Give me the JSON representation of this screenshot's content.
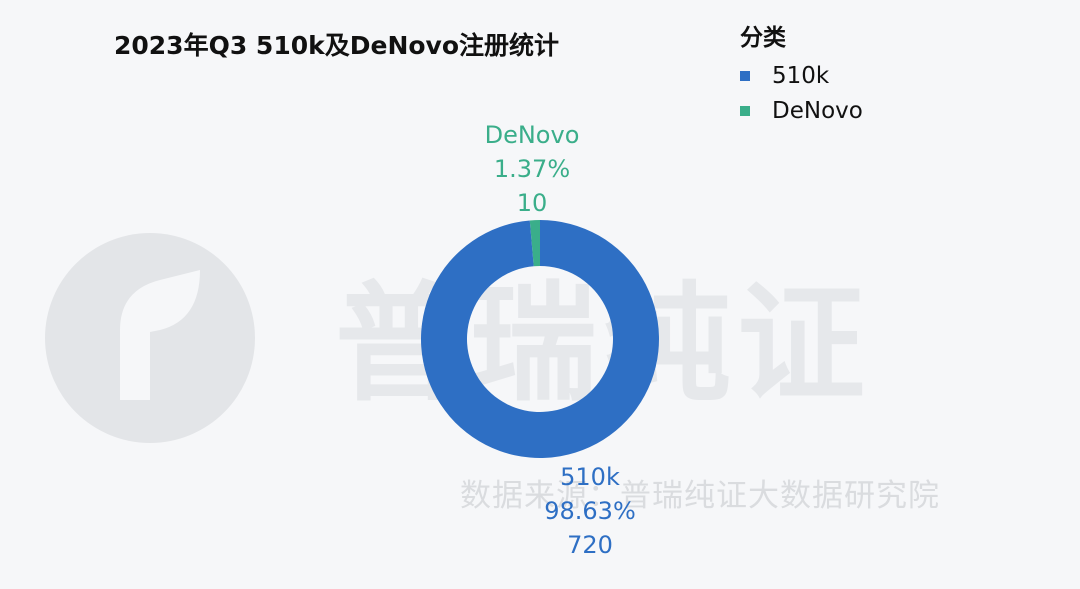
{
  "title": "2023年Q3 510k及DeNovo注册统计",
  "legend": {
    "title": "分类",
    "items": [
      {
        "label": "510k",
        "color": "#2e6fc4"
      },
      {
        "label": "DeNovo",
        "color": "#3aae8a"
      }
    ]
  },
  "watermark": {
    "logo_text": "普瑞纯证",
    "source_text": "数据来源：普瑞纯证大数据研究院"
  },
  "chart_data": {
    "type": "pie",
    "title": "2023年Q3 510k及DeNovo注册统计",
    "donut": true,
    "categories": [
      "510k",
      "DeNovo"
    ],
    "values": [
      720,
      10
    ],
    "percents": [
      "98.63%",
      "1.37%"
    ],
    "colors": [
      "#2e6fc4",
      "#3aae8a"
    ],
    "legend_position": "top-right"
  }
}
